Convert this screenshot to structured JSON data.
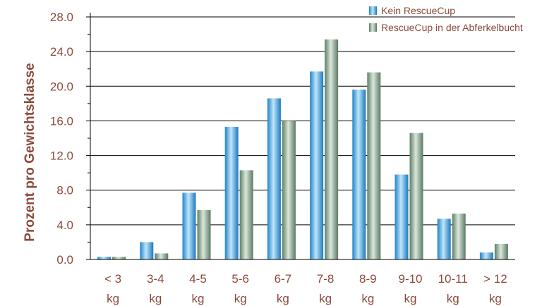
{
  "chart_data": {
    "type": "bar",
    "ylabel": "Prozent pro Gewichtsklasse",
    "xlabel": "",
    "ylim": [
      0,
      28
    ],
    "yticks": [
      "0.0",
      "4.0",
      "8.0",
      "12.0",
      "16.0",
      "20.0",
      "24.0",
      "28.0"
    ],
    "categories": [
      [
        "< 3",
        "kg"
      ],
      [
        "3-4",
        "kg"
      ],
      [
        "4-5",
        "kg"
      ],
      [
        "5-6",
        "kg"
      ],
      [
        "6-7",
        "kg"
      ],
      [
        "7-8",
        "kg"
      ],
      [
        "8-9",
        "kg"
      ],
      [
        "9-10",
        "kg"
      ],
      [
        "10-11",
        "kg"
      ],
      [
        "> 12",
        "kg"
      ]
    ],
    "series": [
      {
        "name": "Kein RescueCup",
        "color": "#3aa6dc",
        "values": [
          0.3,
          2.0,
          7.7,
          15.3,
          18.6,
          21.7,
          19.6,
          9.8,
          4.7,
          0.8
        ]
      },
      {
        "name": "RescueCup in der Abferkelbucht",
        "color": "#7e9e84",
        "values": [
          0.3,
          0.7,
          5.7,
          10.3,
          16.0,
          25.4,
          21.6,
          14.6,
          5.3,
          1.8
        ]
      }
    ],
    "grid": true,
    "legend": "top-right"
  }
}
